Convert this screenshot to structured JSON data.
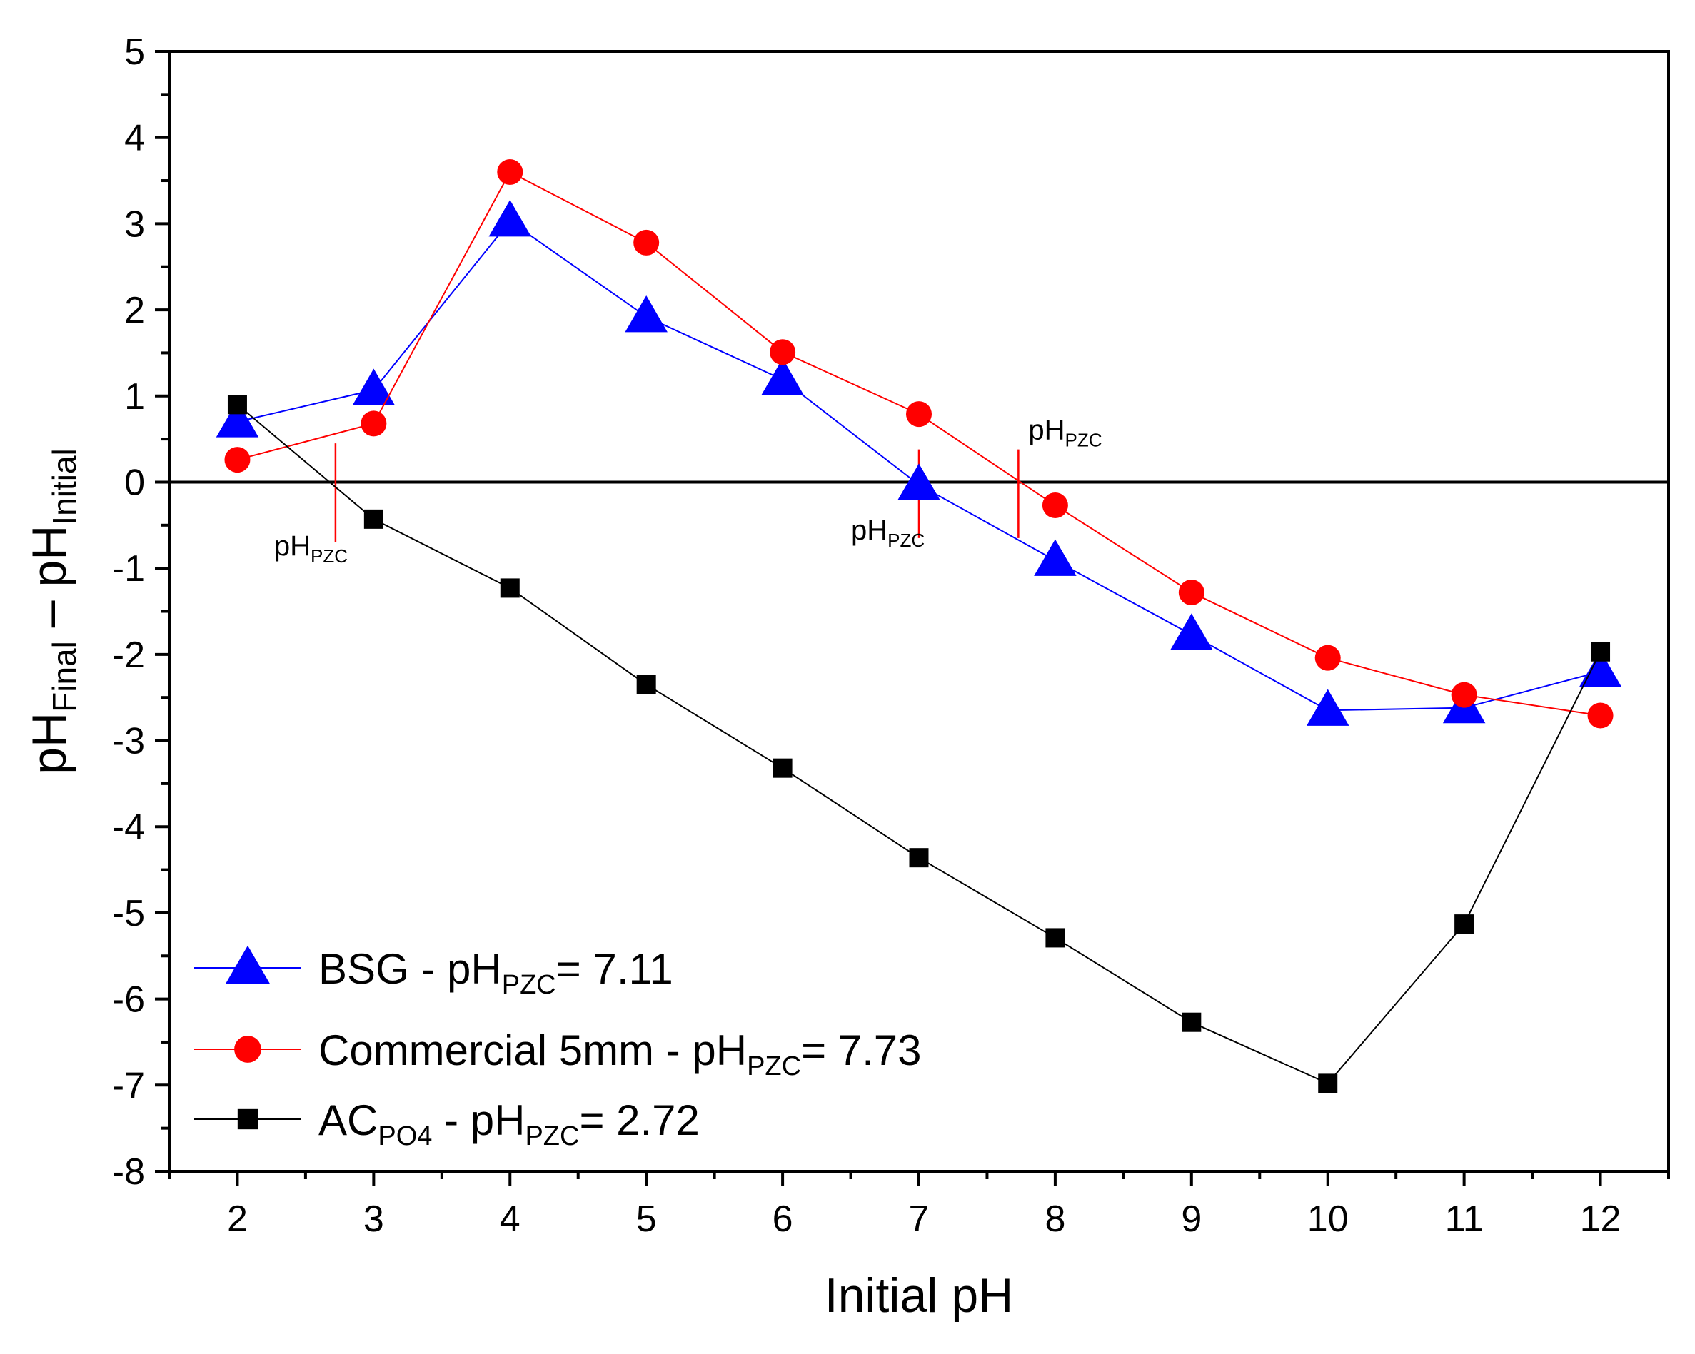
{
  "chart_data": {
    "type": "line",
    "title": "",
    "xlabel": "Initial pH",
    "ylabel": {
      "base1": "pH",
      "sub1": "Final",
      "middle": " – pH",
      "sub2": "Initial"
    },
    "xlim": [
      1.5,
      12.5
    ],
    "ylim": [
      -8,
      5
    ],
    "x_ticks": [
      2,
      3,
      4,
      5,
      6,
      7,
      8,
      9,
      10,
      11,
      12
    ],
    "y_ticks": [
      5,
      4,
      3,
      2,
      1,
      0,
      -1,
      -2,
      -3,
      -4,
      -5,
      -6,
      -7,
      -8
    ],
    "x": [
      2,
      3,
      4,
      5,
      6,
      7,
      8,
      9,
      10,
      11,
      12
    ],
    "grid": false,
    "legend_position": "bottom-left",
    "series": [
      {
        "id": "bsg",
        "legend": {
          "prefix": "BSG - pH",
          "sub": "PZC",
          "suffix": "= 7.11"
        },
        "color": "#0000ff",
        "marker": "triangle",
        "values": [
          0.7,
          1.07,
          3.03,
          1.92,
          1.19,
          -0.03,
          -0.91,
          -1.77,
          -2.65,
          -2.62,
          -2.2
        ]
      },
      {
        "id": "commercial",
        "legend": {
          "prefix": "Commercial 5mm - pH",
          "sub": "PZC",
          "suffix": "= 7.73"
        },
        "color": "#ff0000",
        "marker": "circle",
        "values": [
          0.26,
          0.68,
          3.6,
          2.78,
          1.51,
          0.79,
          -0.27,
          -1.28,
          -2.04,
          -2.47,
          -2.71
        ]
      },
      {
        "id": "acpo4",
        "legend": {
          "prefix": "AC",
          "sub1": "PO4",
          "middle": " - pH",
          "sub": "PZC",
          "suffix": "= 2.72"
        },
        "color": "#000000",
        "marker": "square",
        "values": [
          0.9,
          -0.43,
          -1.23,
          -2.35,
          -3.32,
          -4.36,
          -5.29,
          -6.27,
          -6.98,
          -5.13,
          -1.97
        ]
      }
    ],
    "annotations": [
      {
        "x": 2.72,
        "y_from": -0.7,
        "y_to": 0.45,
        "text": {
          "base": "pH",
          "sub": "PZC"
        },
        "color": "#ff0000",
        "label_side": "below-left"
      },
      {
        "x": 7.0,
        "y_from": -0.65,
        "y_to": 0.38,
        "text": {
          "base": "pH",
          "sub": "PZC"
        },
        "color": "#ff0000",
        "label_side": "below"
      },
      {
        "x": 7.73,
        "y_from": -0.65,
        "y_to": 0.38,
        "text": {
          "base": "pH",
          "sub": "PZC"
        },
        "color": "#ff0000",
        "label_side": "above-right"
      }
    ]
  }
}
